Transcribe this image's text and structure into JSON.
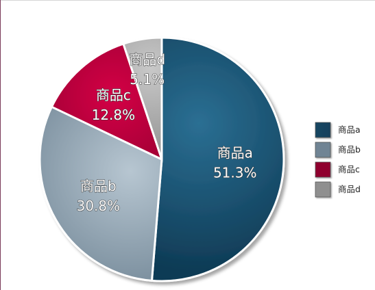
{
  "chart_data": {
    "type": "pie",
    "title": "",
    "categories": [
      "商品a",
      "商品b",
      "商品c",
      "商品d"
    ],
    "values": [
      51.3,
      30.8,
      12.8,
      5.1
    ],
    "value_labels": [
      "51.3%",
      "30.8%",
      "12.8%",
      "5.1%"
    ],
    "colors": [
      "#1e5f82",
      "#a7b8c4",
      "#c0003d",
      "#bcbcbc"
    ],
    "legend_position": "right",
    "start_angle": "12 o'clock",
    "direction": "clockwise"
  }
}
